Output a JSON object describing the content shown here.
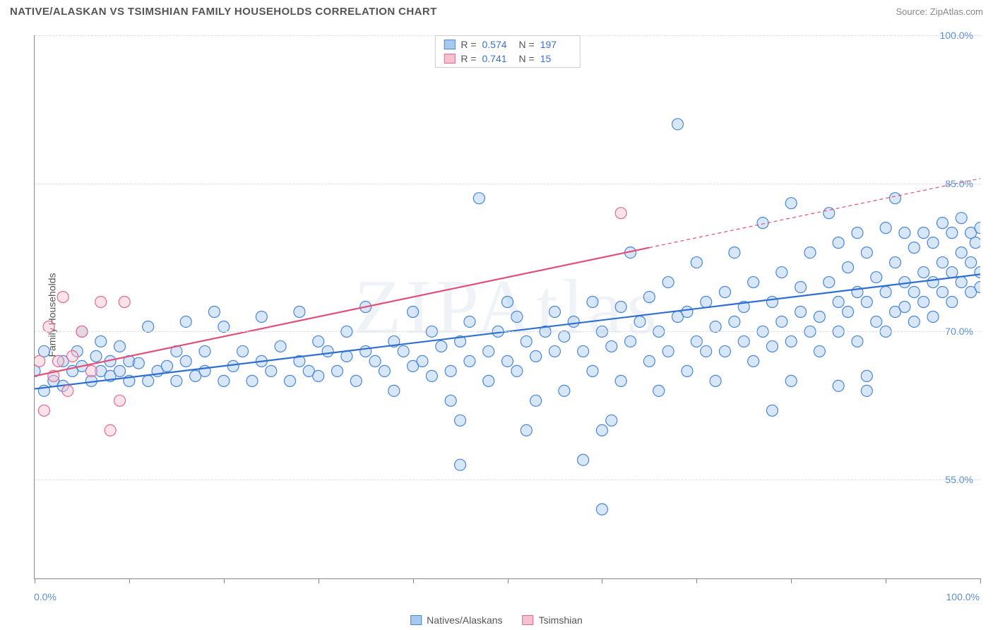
{
  "header": {
    "title": "NATIVE/ALASKAN VS TSIMSHIAN FAMILY HOUSEHOLDS CORRELATION CHART",
    "source_prefix": "Source: ",
    "source_name": "ZipAtlas.com"
  },
  "watermark": "ZIPAtlas",
  "chart": {
    "type": "scatter",
    "y_axis_label": "Family Households",
    "background_color": "#ffffff",
    "grid_color": "#dddddd",
    "axis_color": "#888888",
    "tick_label_color": "#5a8fd8",
    "xlim": [
      0,
      100
    ],
    "ylim": [
      45,
      100
    ],
    "x_ticks": [
      0,
      10,
      20,
      30,
      40,
      50,
      60,
      70,
      80,
      90,
      100
    ],
    "x_tick_labels": {
      "0": "0.0%",
      "100": "100.0%"
    },
    "y_gridlines": [
      55,
      70,
      85,
      100
    ],
    "y_tick_labels": {
      "55": "55.0%",
      "70": "70.0%",
      "85": "85.0%",
      "100": "100.0%"
    },
    "label_fontsize": 14,
    "marker_radius": 8,
    "marker_fill_opacity": 0.45,
    "marker_stroke_width": 1.2,
    "line_width": 2.2
  },
  "legend_top": {
    "rows": [
      {
        "swatch_fill": "#a7c9f0",
        "swatch_stroke": "#4a86d8",
        "r_label": "R =",
        "r_value": "0.574",
        "n_label": "N =",
        "n_value": "197"
      },
      {
        "swatch_fill": "#f6c1cf",
        "swatch_stroke": "#e26a8e",
        "r_label": "R =",
        "r_value": "0.741",
        "n_label": "N =",
        "n_value": " 15"
      }
    ]
  },
  "legend_bottom": {
    "items": [
      {
        "swatch_fill": "#a7c9f0",
        "swatch_stroke": "#4a86d8",
        "label": "Natives/Alaskans"
      },
      {
        "swatch_fill": "#f6c1cf",
        "swatch_stroke": "#e26a8e",
        "label": "Tsimshian"
      }
    ]
  },
  "series": [
    {
      "name": "natives_alaskans",
      "color_fill": "#a7c9f0",
      "color_stroke": "#4a86d8",
      "trend": {
        "x1": 0,
        "y1": 64.2,
        "x2": 100,
        "y2": 75.8,
        "dashed_from_x": null,
        "color": "#2f6fd0"
      },
      "points": [
        [
          0,
          66
        ],
        [
          1,
          64
        ],
        [
          1,
          68
        ],
        [
          2,
          65
        ],
        [
          3,
          64.5
        ],
        [
          3,
          67
        ],
        [
          4,
          66
        ],
        [
          4.5,
          68
        ],
        [
          5,
          66.5
        ],
        [
          5,
          70
        ],
        [
          6,
          65
        ],
        [
          6.5,
          67.5
        ],
        [
          7,
          66
        ],
        [
          7,
          69
        ],
        [
          8,
          65.5
        ],
        [
          8,
          67
        ],
        [
          9,
          66
        ],
        [
          9,
          68.5
        ],
        [
          10,
          65
        ],
        [
          10,
          67
        ],
        [
          11,
          66.8
        ],
        [
          12,
          65
        ],
        [
          12,
          70.5
        ],
        [
          13,
          66
        ],
        [
          14,
          66.5
        ],
        [
          15,
          65
        ],
        [
          15,
          68
        ],
        [
          16,
          67
        ],
        [
          16,
          71
        ],
        [
          17,
          65.5
        ],
        [
          18,
          66
        ],
        [
          18,
          68
        ],
        [
          19,
          72
        ],
        [
          20,
          65
        ],
        [
          20,
          70.5
        ],
        [
          21,
          66.5
        ],
        [
          22,
          68
        ],
        [
          23,
          65
        ],
        [
          24,
          67
        ],
        [
          24,
          71.5
        ],
        [
          25,
          66
        ],
        [
          26,
          68.5
        ],
        [
          27,
          65
        ],
        [
          28,
          72
        ],
        [
          28,
          67
        ],
        [
          29,
          66
        ],
        [
          30,
          69
        ],
        [
          30,
          65.5
        ],
        [
          31,
          68
        ],
        [
          32,
          66
        ],
        [
          33,
          67.5
        ],
        [
          33,
          70
        ],
        [
          34,
          65
        ],
        [
          35,
          68
        ],
        [
          35,
          72.5
        ],
        [
          36,
          67
        ],
        [
          37,
          66
        ],
        [
          38,
          69
        ],
        [
          38,
          64
        ],
        [
          39,
          68
        ],
        [
          40,
          66.5
        ],
        [
          40,
          72
        ],
        [
          41,
          67
        ],
        [
          42,
          65.5
        ],
        [
          42,
          70
        ],
        [
          43,
          68.5
        ],
        [
          44,
          66
        ],
        [
          44,
          63
        ],
        [
          45,
          69
        ],
        [
          45,
          56.5
        ],
        [
          46,
          67
        ],
        [
          46,
          71
        ],
        [
          47,
          83.5
        ],
        [
          48,
          68
        ],
        [
          48,
          65
        ],
        [
          49,
          70
        ],
        [
          50,
          67
        ],
        [
          50,
          73
        ],
        [
          51,
          66
        ],
        [
          51,
          71.5
        ],
        [
          52,
          69
        ],
        [
          53,
          67.5
        ],
        [
          53,
          63
        ],
        [
          54,
          70
        ],
        [
          55,
          68
        ],
        [
          55,
          72
        ],
        [
          56,
          64
        ],
        [
          56,
          69.5
        ],
        [
          57,
          71
        ],
        [
          58,
          57
        ],
        [
          58,
          68
        ],
        [
          59,
          73
        ],
        [
          59,
          66
        ],
        [
          60,
          70
        ],
        [
          60,
          52
        ],
        [
          61,
          68.5
        ],
        [
          62,
          72.5
        ],
        [
          62,
          65
        ],
        [
          63,
          69
        ],
        [
          63,
          78
        ],
        [
          64,
          71
        ],
        [
          65,
          67
        ],
        [
          65,
          73.5
        ],
        [
          66,
          70
        ],
        [
          66,
          64
        ],
        [
          67,
          68
        ],
        [
          67,
          75
        ],
        [
          68,
          71.5
        ],
        [
          68,
          91
        ],
        [
          69,
          66
        ],
        [
          69,
          72
        ],
        [
          70,
          69
        ],
        [
          70,
          77
        ],
        [
          71,
          68
        ],
        [
          71,
          73
        ],
        [
          72,
          70.5
        ],
        [
          72,
          65
        ],
        [
          73,
          74
        ],
        [
          73,
          68
        ],
        [
          74,
          71
        ],
        [
          74,
          78
        ],
        [
          75,
          69
        ],
        [
          75,
          72.5
        ],
        [
          76,
          67
        ],
        [
          76,
          75
        ],
        [
          77,
          70
        ],
        [
          77,
          81
        ],
        [
          78,
          73
        ],
        [
          78,
          68.5
        ],
        [
          79,
          71
        ],
        [
          79,
          76
        ],
        [
          80,
          69
        ],
        [
          80,
          83
        ],
        [
          80,
          65
        ],
        [
          81,
          72
        ],
        [
          81,
          74.5
        ],
        [
          82,
          70
        ],
        [
          82,
          78
        ],
        [
          83,
          71.5
        ],
        [
          83,
          68
        ],
        [
          84,
          75
        ],
        [
          84,
          82
        ],
        [
          85,
          73
        ],
        [
          85,
          70
        ],
        [
          85,
          79
        ],
        [
          86,
          72
        ],
        [
          86,
          76.5
        ],
        [
          87,
          74
        ],
        [
          87,
          69
        ],
        [
          87,
          80
        ],
        [
          88,
          73
        ],
        [
          88,
          78
        ],
        [
          88,
          64
        ],
        [
          89,
          71
        ],
        [
          89,
          75.5
        ],
        [
          90,
          74
        ],
        [
          90,
          80.5
        ],
        [
          90,
          70
        ],
        [
          91,
          72
        ],
        [
          91,
          77
        ],
        [
          91,
          83.5
        ],
        [
          92,
          75
        ],
        [
          92,
          80
        ],
        [
          92,
          72.5
        ],
        [
          93,
          74
        ],
        [
          93,
          78.5
        ],
        [
          93,
          71
        ],
        [
          94,
          76
        ],
        [
          94,
          80
        ],
        [
          94,
          73
        ],
        [
          95,
          75
        ],
        [
          95,
          79
        ],
        [
          95,
          71.5
        ],
        [
          96,
          77
        ],
        [
          96,
          81
        ],
        [
          96,
          74
        ],
        [
          97,
          76
        ],
        [
          97,
          80
        ],
        [
          97,
          73
        ],
        [
          98,
          78
        ],
        [
          98,
          75
        ],
        [
          98,
          81.5
        ],
        [
          99,
          77
        ],
        [
          99,
          80
        ],
        [
          99,
          74
        ],
        [
          99.5,
          79
        ],
        [
          100,
          76
        ],
        [
          100,
          80.5
        ],
        [
          100,
          74.5
        ],
        [
          45,
          61
        ],
        [
          52,
          60
        ],
        [
          60,
          60
        ],
        [
          78,
          62
        ],
        [
          85,
          64.5
        ],
        [
          88,
          65.5
        ],
        [
          61,
          61
        ]
      ]
    },
    {
      "name": "tsimshian",
      "color_fill": "#f6c1cf",
      "color_stroke": "#e26a8e",
      "trend": {
        "x1": 0,
        "y1": 65.5,
        "x2": 100,
        "y2": 85.5,
        "dashed_from_x": 65,
        "color": "#e05078"
      },
      "points": [
        [
          0.5,
          67
        ],
        [
          1,
          62
        ],
        [
          1.5,
          70.5
        ],
        [
          2,
          65.5
        ],
        [
          2.5,
          67
        ],
        [
          3,
          73.5
        ],
        [
          3.5,
          64
        ],
        [
          4,
          67.5
        ],
        [
          5,
          70
        ],
        [
          6,
          66
        ],
        [
          7,
          73
        ],
        [
          8,
          60
        ],
        [
          9,
          63
        ],
        [
          9.5,
          73
        ],
        [
          62,
          82
        ]
      ]
    }
  ]
}
